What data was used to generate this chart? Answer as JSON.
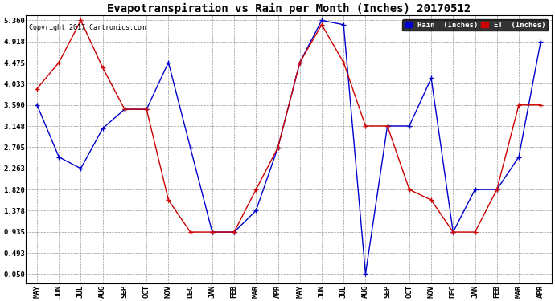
{
  "title": "Evapotranspiration vs Rain per Month (Inches) 20170512",
  "copyright": "Copyright 2017 Cartronics.com",
  "months": [
    "MAY",
    "JUN",
    "JUL",
    "AUG",
    "SEP",
    "OCT",
    "NOV",
    "DEC",
    "JAN",
    "FEB",
    "MAR",
    "APR",
    "MAY",
    "JUN",
    "JUL",
    "AUG",
    "SEP",
    "OCT",
    "NOV",
    "DEC",
    "JAN",
    "FEB",
    "MAR",
    "APR"
  ],
  "rain": [
    3.59,
    2.5,
    2.26,
    3.1,
    3.5,
    3.5,
    4.48,
    2.7,
    0.93,
    0.93,
    1.38,
    2.7,
    4.48,
    5.36,
    5.27,
    0.05,
    3.15,
    3.15,
    4.15,
    0.93,
    1.82,
    1.82,
    2.5,
    4.92
  ],
  "et": [
    3.93,
    4.48,
    5.36,
    4.37,
    3.5,
    3.5,
    1.6,
    0.93,
    0.93,
    0.93,
    1.82,
    2.7,
    4.48,
    5.27,
    4.48,
    3.15,
    3.15,
    1.82,
    1.6,
    0.93,
    0.93,
    1.82,
    3.59,
    3.59
  ],
  "rain_color": "#0000cc",
  "et_color": "#cc0000",
  "bg_color": "#ffffff",
  "grid_color": "#999999",
  "yticks": [
    0.05,
    0.493,
    0.935,
    1.378,
    1.82,
    2.263,
    2.705,
    3.148,
    3.59,
    4.033,
    4.475,
    4.918,
    5.36
  ],
  "ymin": 0.05,
  "ymax": 5.36,
  "title_fontsize": 10,
  "legend_rain_label": "Rain  (Inches)",
  "legend_et_label": "ET  (Inches)"
}
